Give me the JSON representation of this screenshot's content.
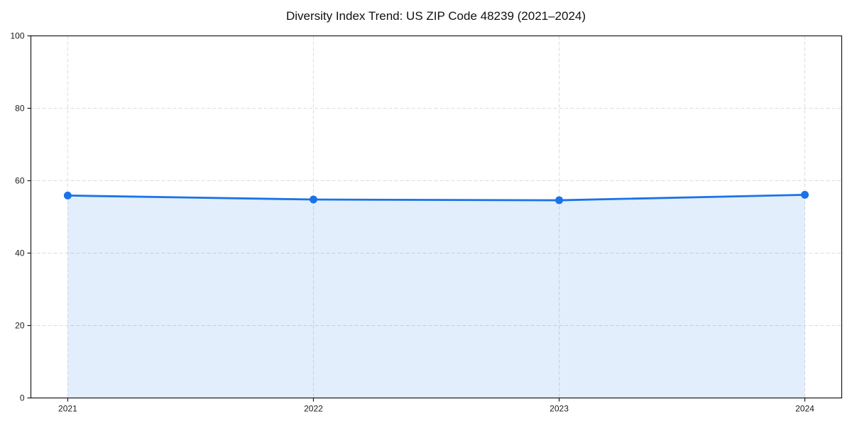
{
  "chart_data": {
    "type": "line",
    "title": "Diversity Index Trend: US ZIP Code 48239 (2021–2024)",
    "categories": [
      "2021",
      "2022",
      "2023",
      "2024"
    ],
    "series": [
      {
        "name": "Diversity Index",
        "values": [
          55.9,
          54.8,
          54.6,
          56.1
        ]
      }
    ],
    "xlabel": "",
    "ylabel": "",
    "ylim": [
      0,
      100
    ],
    "yticks": [
      0,
      20,
      40,
      60,
      80,
      100
    ],
    "grid": true,
    "grid_style": "dashed",
    "legend_position": "none",
    "area_fill_to_zero": true,
    "markers": "circle",
    "colors": {
      "line": "#1a73e8",
      "marker": "#1a73e8",
      "area": "#1a73e8",
      "area_opacity": 0.12,
      "grid": "#dcdcdc",
      "spine": "#1a1a1a",
      "tick": "#1a1a1a",
      "background": "#ffffff"
    }
  }
}
